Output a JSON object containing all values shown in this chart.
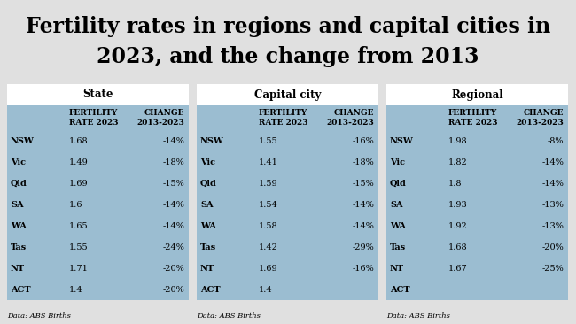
{
  "title_line1": "Fertility rates in regions and capital cities in",
  "title_line2": "2023, and the change from 2013",
  "background_color": "#e0e0e0",
  "table_header_bg": "#ffffff",
  "table_body_bg": "#9bbdd1",
  "tables": [
    {
      "header": "State",
      "rows": [
        [
          "NSW",
          "1.68",
          "-14%"
        ],
        [
          "Vic",
          "1.49",
          "-18%"
        ],
        [
          "Qld",
          "1.69",
          "-15%"
        ],
        [
          "SA",
          "1.6",
          "-14%"
        ],
        [
          "WA",
          "1.65",
          "-14%"
        ],
        [
          "Tas",
          "1.55",
          "-24%"
        ],
        [
          "NT",
          "1.71",
          "-20%"
        ],
        [
          "ACT",
          "1.4",
          "-20%"
        ]
      ],
      "footnote": "Data: ABS Births"
    },
    {
      "header": "Capital city",
      "rows": [
        [
          "NSW",
          "1.55",
          "-16%"
        ],
        [
          "Vic",
          "1.41",
          "-18%"
        ],
        [
          "Qld",
          "1.59",
          "-15%"
        ],
        [
          "SA",
          "1.54",
          "-14%"
        ],
        [
          "WA",
          "1.58",
          "-14%"
        ],
        [
          "Tas",
          "1.42",
          "-29%"
        ],
        [
          "NT",
          "1.69",
          "-16%"
        ],
        [
          "ACT",
          "1.4",
          ""
        ]
      ],
      "footnote": "Data: ABS Births"
    },
    {
      "header": "Regional",
      "rows": [
        [
          "NSW",
          "1.98",
          "-8%"
        ],
        [
          "Vic",
          "1.82",
          "-14%"
        ],
        [
          "Qld",
          "1.8",
          "-14%"
        ],
        [
          "SA",
          "1.93",
          "-13%"
        ],
        [
          "WA",
          "1.92",
          "-13%"
        ],
        [
          "Tas",
          "1.68",
          "-20%"
        ],
        [
          "NT",
          "1.67",
          "-25%"
        ],
        [
          "ACT",
          "",
          ""
        ]
      ],
      "footnote": "Data: ABS Births"
    }
  ],
  "col1_header": "FERTILITY\nRATE 2023",
  "col2_header": "CHANGE\n2013-2023",
  "title_fontsize": 17,
  "header_fontsize": 8.5,
  "col_header_fontsize": 6.5,
  "row_fontsize": 7,
  "footnote_fontsize": 6
}
